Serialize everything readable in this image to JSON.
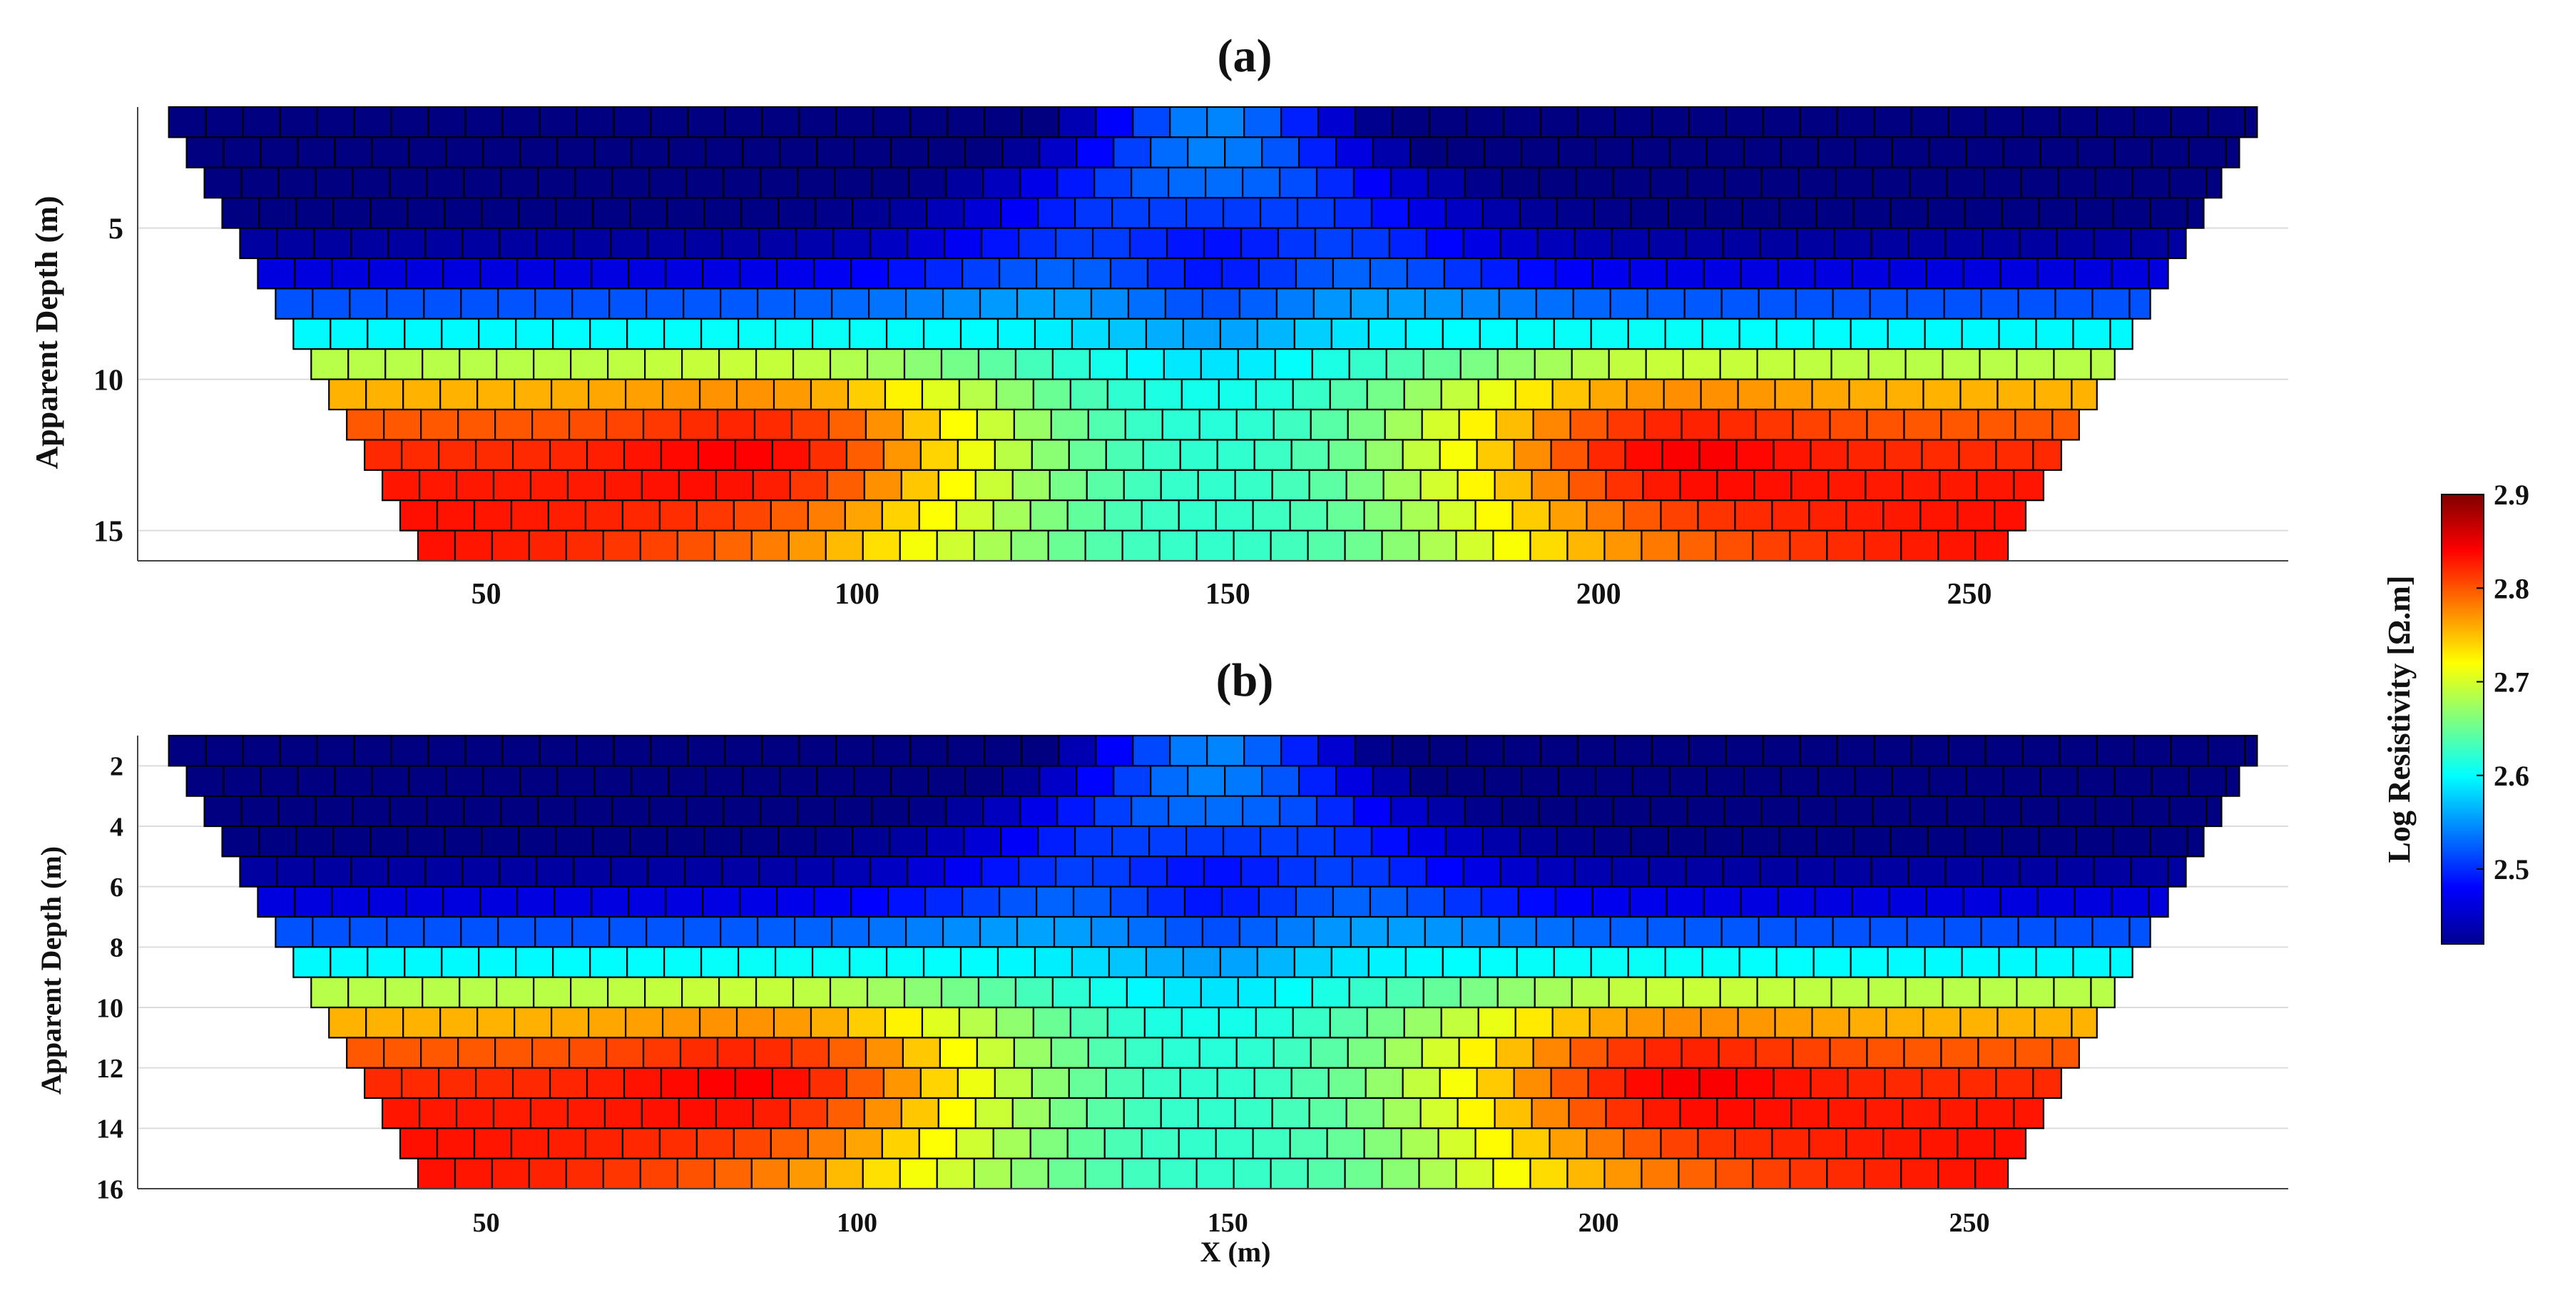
{
  "figure": {
    "panel_a_title": "(a)",
    "panel_b_title": "(b)",
    "colorbar_label": "Log Resistivity [Ω.m]",
    "colorbar_ticks": [
      2.5,
      2.6,
      2.7,
      2.8,
      2.9
    ],
    "colorbar_range": [
      2.42,
      2.9
    ]
  },
  "chart_data": [
    {
      "type": "heatmap",
      "title": "(a)",
      "xlabel": "",
      "ylabel": "Apparent Depth (m)",
      "xlim": [
        3,
        293
      ],
      "ylim": [
        1,
        16
      ],
      "y_reversed": true,
      "xticks": [
        50,
        100,
        150,
        200,
        250
      ],
      "yticks": [
        5,
        10,
        15
      ],
      "grid": "horizontal",
      "colormap": "jet",
      "data_extent": "trapezoid: x from 6 to 290 at 1 m depth, 42 to 254 at 16 m depth",
      "features": [
        {
          "label": "low resistivity near surface",
          "x": [
            6,
            290
          ],
          "depth": [
            1,
            3
          ],
          "value": 2.45
        },
        {
          "label": "central low-resistivity column",
          "x": [
            140,
            160
          ],
          "depth": [
            4,
            9
          ],
          "value": 2.5
        },
        {
          "label": "high resistivity anomaly west",
          "x": [
            60,
            110
          ],
          "depth": [
            10,
            16
          ],
          "value": 2.88
        },
        {
          "label": "high resistivity anomaly east",
          "x": [
            190,
            245
          ],
          "depth": [
            10,
            16
          ],
          "value": 2.88
        },
        {
          "label": "intermediate center base",
          "x": [
            120,
            180
          ],
          "depth": [
            12,
            16
          ],
          "value": 2.65
        }
      ]
    },
    {
      "type": "heatmap",
      "title": "(b)",
      "xlabel": "X (m)",
      "ylabel": "Apparent Depth (m)",
      "xlim": [
        3,
        293
      ],
      "ylim": [
        1,
        16
      ],
      "y_reversed": true,
      "xticks": [
        50,
        100,
        150,
        200,
        250
      ],
      "yticks": [
        2,
        4,
        6,
        8,
        10,
        12,
        14,
        16
      ],
      "grid": "horizontal",
      "colormap": "jet",
      "data_extent": "trapezoid: x from 6 to 290 at 1 m depth, 42 to 254 at 16 m depth",
      "features": [
        {
          "label": "low resistivity near surface",
          "x": [
            6,
            290
          ],
          "depth": [
            1,
            3
          ],
          "value": 2.45
        },
        {
          "label": "central low-resistivity column",
          "x": [
            140,
            160
          ],
          "depth": [
            4,
            9
          ],
          "value": 2.5
        },
        {
          "label": "high resistivity anomaly west",
          "x": [
            60,
            110
          ],
          "depth": [
            10,
            16
          ],
          "value": 2.88
        },
        {
          "label": "high resistivity anomaly east",
          "x": [
            190,
            245
          ],
          "depth": [
            10,
            16
          ],
          "value": 2.88
        },
        {
          "label": "intermediate center base",
          "x": [
            120,
            180
          ],
          "depth": [
            12,
            16
          ],
          "value": 2.65
        }
      ]
    }
  ]
}
